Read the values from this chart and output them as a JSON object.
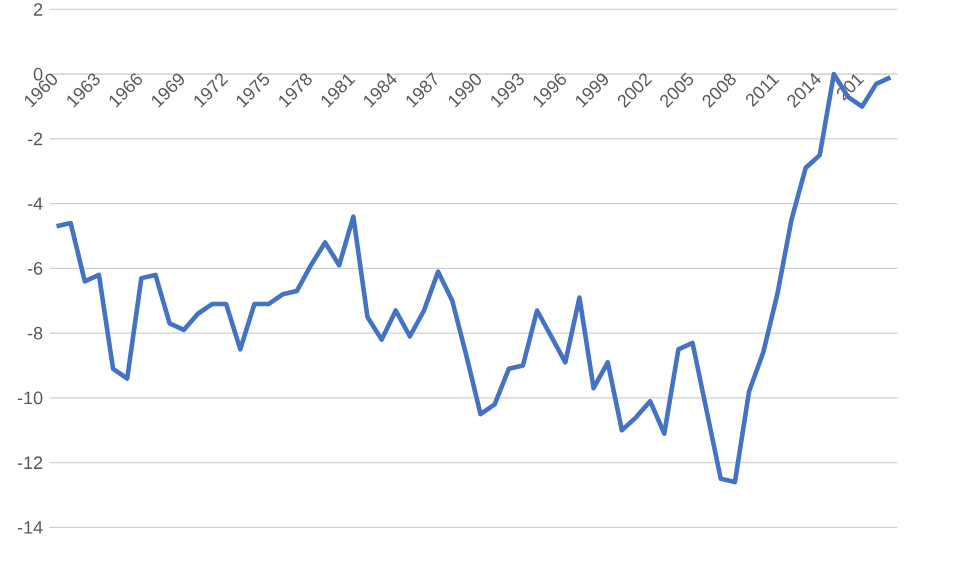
{
  "chart_data": {
    "type": "line",
    "categories": [
      "1960",
      null,
      null,
      "1963",
      null,
      null,
      "1966",
      null,
      null,
      "1969",
      null,
      null,
      "1972",
      null,
      null,
      "1975",
      null,
      null,
      "1978",
      null,
      null,
      "1981",
      null,
      null,
      "1984",
      null,
      null,
      "1987",
      null,
      null,
      "1990",
      null,
      null,
      "1993",
      null,
      null,
      "1996",
      null,
      null,
      "1999",
      null,
      null,
      "2002",
      null,
      null,
      "2005",
      null,
      null,
      "2008",
      null,
      null,
      "2011",
      null,
      null,
      "2014",
      null,
      null,
      "201",
      null,
      null
    ],
    "series": [
      {
        "color": "#4472c4",
        "values": [
          -4.7,
          -4.6,
          -6.4,
          -6.2,
          -9.1,
          -9.4,
          -6.3,
          -6.2,
          -7.7,
          -7.9,
          -7.4,
          -7.1,
          -7.1,
          -8.5,
          -7.1,
          -7.1,
          -6.8,
          -6.7,
          -5.9,
          -5.2,
          -5.9,
          -4.4,
          -7.5,
          -8.2,
          -7.3,
          -8.1,
          -7.3,
          -6.1,
          -7.0,
          -8.7,
          -10.5,
          -10.2,
          -9.1,
          -9.0,
          -7.3,
          -8.1,
          -8.9,
          -6.9,
          -9.7,
          -8.9,
          -11.0,
          -10.6,
          -10.1,
          -11.1,
          -8.5,
          -8.3,
          -10.4,
          -12.5,
          -12.6,
          -9.8,
          -8.6,
          -6.8,
          -4.5,
          -2.9,
          -2.5,
          0.0,
          -0.7,
          -1.0,
          -0.3,
          -0.1
        ]
      }
    ],
    "ylim": [
      -14,
      2
    ],
    "yticks": [
      -14,
      -12,
      -10,
      -8,
      -6,
      -4,
      -2,
      0,
      2
    ],
    "grid": "y",
    "marker": "none",
    "line_style": "solid"
  }
}
